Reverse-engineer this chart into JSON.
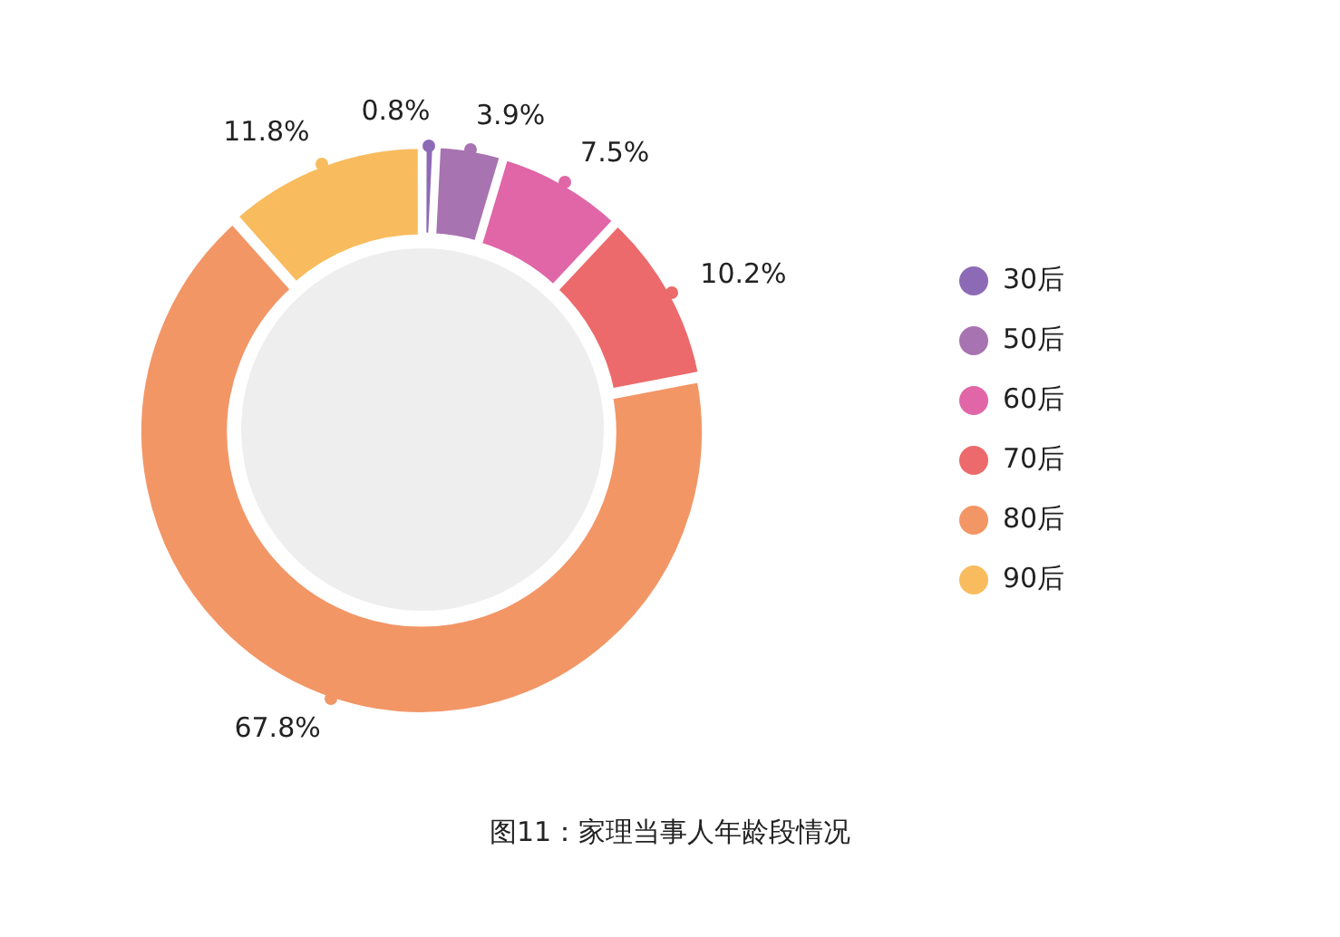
{
  "chart_data": {
    "type": "donut",
    "title": "图11：家理当事人年龄段情况",
    "categories": [
      "30后",
      "50后",
      "60后",
      "70后",
      "80后",
      "90后"
    ],
    "values": [
      0.8,
      3.9,
      7.5,
      10.2,
      67.8,
      11.8
    ],
    "colors": [
      "#8d6ab5",
      "#a873b1",
      "#e066a8",
      "#ec6a6b",
      "#f29666",
      "#f8bc5e"
    ],
    "value_labels": [
      "0.8%",
      "3.9%",
      "7.5%",
      "10.2%",
      "67.8%",
      "11.8%"
    ],
    "legend": "right"
  }
}
